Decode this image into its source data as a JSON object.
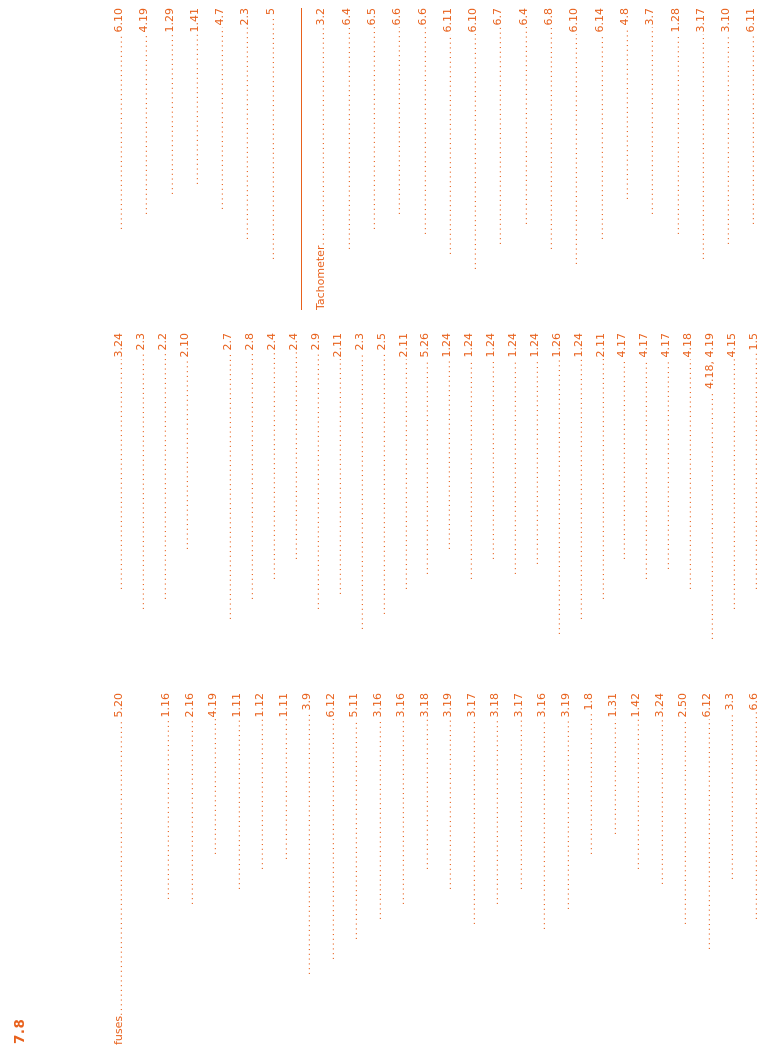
{
  "page": {
    "number": "7.8",
    "accent_color": "#e8611c"
  },
  "index": {
    "columns": [
      {
        "name": "column-1",
        "entries": [
          {
            "label": "fuses",
            "indent": 0,
            "page": "5.20"
          },
          {
            "type": "gap"
          },
          {
            "label": "",
            "indent": 145,
            "page": "1.16"
          },
          {
            "label": "",
            "indent": 140,
            "page": "2.16"
          },
          {
            "label": "",
            "indent": 190,
            "page": "4.19"
          },
          {
            "label": "",
            "indent": 155,
            "page": "1.11"
          },
          {
            "label": "",
            "indent": 175,
            "page": "1.12"
          },
          {
            "label": "",
            "indent": 185,
            "page": "1.11"
          },
          {
            "label": "",
            "indent": 70,
            "page": "3.9"
          },
          {
            "label": "",
            "indent": 85,
            "page": "6.12"
          },
          {
            "label": "",
            "indent": 105,
            "page": "5.11"
          },
          {
            "label": "",
            "indent": 125,
            "page": "3.16"
          },
          {
            "label": "",
            "indent": 140,
            "page": "3.16"
          },
          {
            "label": "",
            "indent": 175,
            "page": "3.18"
          },
          {
            "label": "",
            "indent": 155,
            "page": "3.19"
          },
          {
            "label": "",
            "indent": 120,
            "page": "3.17"
          },
          {
            "label": "",
            "indent": 140,
            "page": "3.18"
          },
          {
            "label": "",
            "indent": 155,
            "page": "3.17"
          },
          {
            "label": "",
            "indent": 115,
            "page": "3.16"
          },
          {
            "label": "",
            "indent": 135,
            "page": "3.19"
          },
          {
            "label": "",
            "indent": 190,
            "page": "1.8"
          },
          {
            "label": "",
            "indent": 210,
            "page": "1.31"
          },
          {
            "label": "",
            "indent": 175,
            "page": "1.42"
          },
          {
            "label": "",
            "indent": 160,
            "page": "3.24"
          },
          {
            "label": "",
            "indent": 120,
            "page": "2.50"
          },
          {
            "label": "",
            "indent": 95,
            "page": "6.12"
          },
          {
            "label": "",
            "indent": 165,
            "page": "3.3"
          },
          {
            "label": "",
            "indent": 125,
            "page": "6.6"
          }
        ]
      },
      {
        "name": "column-2",
        "entries": [
          {
            "label": "",
            "indent": 60,
            "page": "3.24"
          },
          {
            "label": "",
            "indent": 40,
            "page": "2.3"
          },
          {
            "label": "",
            "indent": 50,
            "page": "2.2"
          },
          {
            "label": "",
            "indent": 100,
            "page": "2.10"
          },
          {
            "type": "gap"
          },
          {
            "label": "",
            "indent": 30,
            "page": "2.7"
          },
          {
            "label": "",
            "indent": 50,
            "page": "2.8"
          },
          {
            "label": "",
            "indent": 70,
            "page": "2.4"
          },
          {
            "label": "",
            "indent": 90,
            "page": "2.4"
          },
          {
            "label": "",
            "indent": 40,
            "page": "2.9"
          },
          {
            "label": "",
            "indent": 55,
            "page": "2.11"
          },
          {
            "label": "",
            "indent": 20,
            "page": "2.3"
          },
          {
            "label": "",
            "indent": 35,
            "page": "2.5"
          },
          {
            "label": "",
            "indent": 60,
            "page": "2.11"
          },
          {
            "label": "",
            "indent": 75,
            "page": "5.26"
          },
          {
            "label": "",
            "indent": 100,
            "page": "1.24"
          },
          {
            "label": "",
            "indent": 70,
            "page": "1.24"
          },
          {
            "label": "",
            "indent": 90,
            "page": "1.24"
          },
          {
            "label": "",
            "indent": 75,
            "page": "1.24"
          },
          {
            "label": "",
            "indent": 85,
            "page": "1.24"
          },
          {
            "label": "",
            "indent": 15,
            "page": "1.26"
          },
          {
            "label": "",
            "indent": 30,
            "page": "1.24"
          },
          {
            "label": "",
            "indent": 50,
            "page": "2.11"
          },
          {
            "label": "",
            "indent": 90,
            "page": "4.17"
          },
          {
            "label": "",
            "indent": 70,
            "page": "4.17"
          },
          {
            "label": "",
            "indent": 80,
            "page": "4.17"
          },
          {
            "label": "",
            "indent": 60,
            "page": "4.18"
          },
          {
            "label": "",
            "indent": 10,
            "page": "4.18, 4.19"
          },
          {
            "label": "",
            "indent": 40,
            "page": "4.15"
          },
          {
            "label": "",
            "indent": 60,
            "page": "1.5"
          }
        ]
      },
      {
        "name": "column-3",
        "entries": [
          {
            "label": "",
            "indent": 80,
            "page": "6.10"
          },
          {
            "label": "",
            "indent": 95,
            "page": "4.19"
          },
          {
            "label": "",
            "indent": 115,
            "page": "1.29"
          },
          {
            "label": "",
            "indent": 125,
            "page": "1.41"
          },
          {
            "label": "",
            "indent": 100,
            "page": "4.7"
          },
          {
            "label": "",
            "indent": 70,
            "page": "2.3"
          },
          {
            "label": "",
            "indent": 50,
            "page": "5"
          },
          {
            "type": "divider"
          },
          {
            "label": "Tachometer",
            "indent": 0,
            "page": "3.2"
          },
          {
            "label": "",
            "indent": 60,
            "page": "6.4"
          },
          {
            "label": "",
            "indent": 80,
            "page": "6.5"
          },
          {
            "label": "",
            "indent": 95,
            "page": "6.6"
          },
          {
            "label": "",
            "indent": 75,
            "page": "6.6"
          },
          {
            "label": "",
            "indent": 55,
            "page": "6.11"
          },
          {
            "label": "",
            "indent": 40,
            "page": "6.10"
          },
          {
            "label": "",
            "indent": 65,
            "page": "6.7"
          },
          {
            "label": "",
            "indent": 85,
            "page": "6.4"
          },
          {
            "label": "",
            "indent": 60,
            "page": "6.8"
          },
          {
            "label": "",
            "indent": 45,
            "page": "6.10"
          },
          {
            "label": "",
            "indent": 70,
            "page": "6.14"
          },
          {
            "label": "",
            "indent": 110,
            "page": "4.8"
          },
          {
            "label": "",
            "indent": 95,
            "page": "3.7"
          },
          {
            "label": "",
            "indent": 75,
            "page": "1.28"
          },
          {
            "label": "",
            "indent": 50,
            "page": "3.17"
          },
          {
            "label": "",
            "indent": 65,
            "page": "3.10"
          },
          {
            "label": "",
            "indent": 85,
            "page": "6.11"
          }
        ]
      }
    ]
  }
}
